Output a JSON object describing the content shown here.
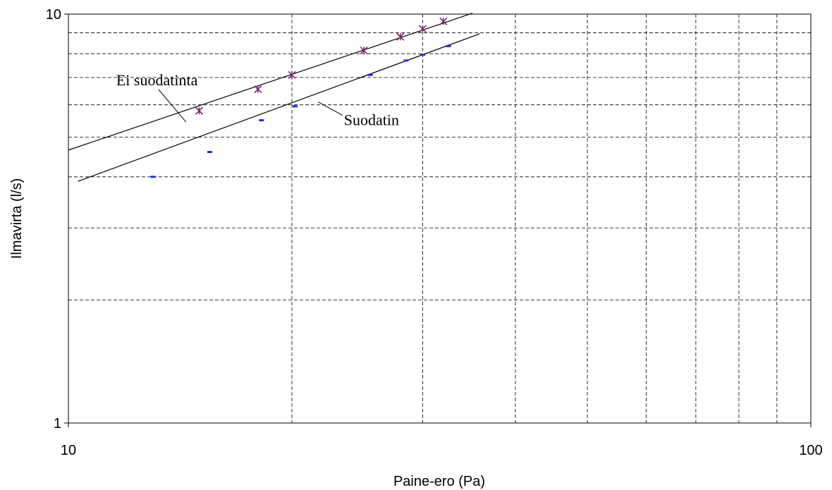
{
  "chart_data": {
    "type": "scatter",
    "title": "",
    "xlabel": "Paine-ero (Pa)",
    "ylabel": "Ilmavirta (l/s)",
    "x_scale": "log",
    "y_scale": "log",
    "xlim": [
      10,
      100
    ],
    "ylim": [
      1,
      10
    ],
    "x_ticks": [
      10,
      100
    ],
    "x_tick_labels": [
      "10",
      "100"
    ],
    "y_ticks": [
      1,
      10
    ],
    "y_tick_labels": [
      "1",
      "10"
    ],
    "grid": true,
    "legend": "none",
    "series": [
      {
        "marker": "asterisk",
        "color": "#7a1a6e",
        "points": [
          [
            15,
            5.8
          ],
          [
            18,
            6.55
          ],
          [
            20,
            7.1
          ],
          [
            25,
            8.15
          ],
          [
            28,
            8.8
          ],
          [
            30,
            9.2
          ],
          [
            32,
            9.6
          ]
        ]
      },
      {
        "marker": "dash",
        "color": "#1f2fd6",
        "points": [
          [
            13,
            4.0
          ],
          [
            15.5,
            4.6
          ],
          [
            18.2,
            5.5
          ],
          [
            20.2,
            5.95
          ],
          [
            25.5,
            7.1
          ],
          [
            28.5,
            7.7
          ],
          [
            30,
            7.95
          ],
          [
            32.5,
            8.35
          ]
        ]
      }
    ],
    "fit_lines": [
      {
        "points": [
          [
            10,
            4.65
          ],
          [
            35,
            10.05
          ]
        ],
        "color": "#000000"
      },
      {
        "points": [
          [
            10.3,
            3.9
          ],
          [
            35.8,
            8.95
          ]
        ],
        "color": "#000000"
      }
    ],
    "annotations": [
      {
        "text": "Ei suodatinta",
        "x": 11.6,
        "y": 6.7,
        "arrow_to": [
          14.4,
          5.45
        ]
      },
      {
        "text": "Suodatin",
        "x": 23.5,
        "y": 5.35,
        "arrow_to": [
          21.7,
          6.1
        ]
      }
    ]
  }
}
